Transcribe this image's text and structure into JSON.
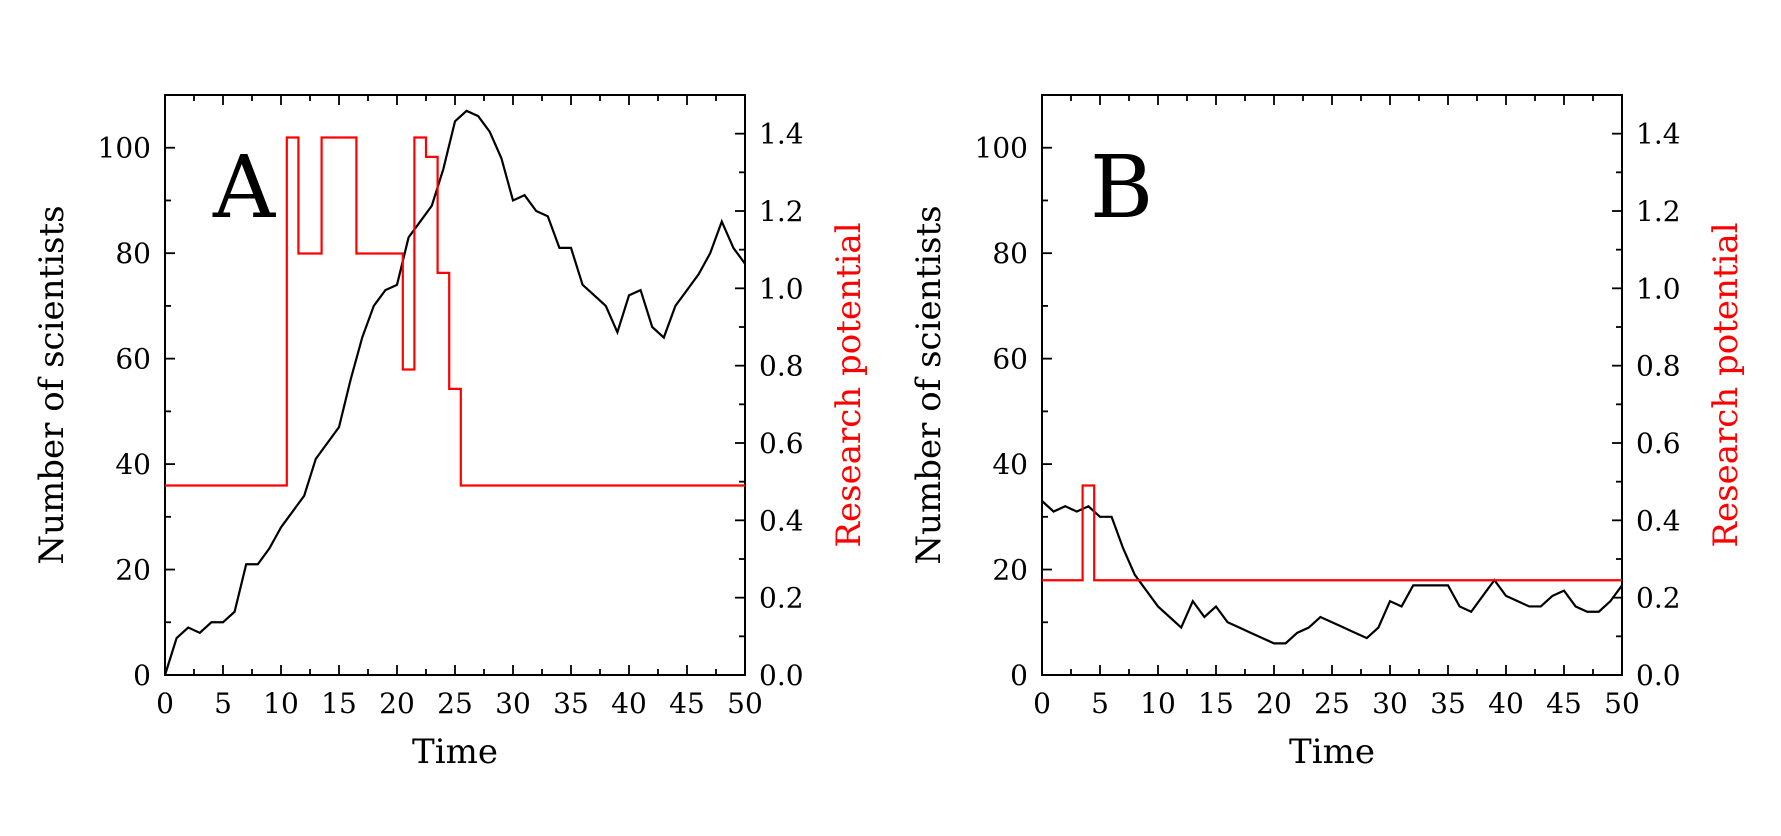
{
  "chart_data": [
    {
      "panel_label": "A",
      "type": "line",
      "xlabel": "Time",
      "ylabel": "Number of scientists",
      "y2label": "Research potential",
      "xlim": [
        0,
        50
      ],
      "ylim": [
        0,
        110
      ],
      "y2lim": [
        0,
        1.5
      ],
      "x_ticks": [
        0,
        5,
        10,
        15,
        20,
        25,
        30,
        35,
        40,
        45,
        50
      ],
      "y_ticks": [
        0,
        20,
        40,
        60,
        80,
        100
      ],
      "y2_ticks": [
        0.0,
        0.2,
        0.4,
        0.6,
        0.8,
        1.0,
        1.2,
        1.4
      ],
      "y2_tick_labels": [
        "0.0",
        "0.2",
        "0.4",
        "0.6",
        "0.8",
        "1.0",
        "1.2",
        "1.4"
      ],
      "grid": false,
      "series": [
        {
          "axis": "left",
          "style": "line",
          "color": "#000000",
          "x": [
            0,
            1,
            2,
            3,
            4,
            5,
            6,
            7,
            8,
            9,
            10,
            11,
            12,
            13,
            14,
            15,
            16,
            17,
            18,
            19,
            20,
            21,
            22,
            23,
            24,
            25,
            26,
            27,
            28,
            29,
            30,
            31,
            32,
            33,
            34,
            35,
            36,
            37,
            38,
            39,
            40,
            41,
            42,
            43,
            44,
            45,
            46,
            47,
            48,
            49,
            50
          ],
          "y": [
            0,
            7,
            9,
            8,
            10,
            10,
            12,
            21,
            21,
            24,
            28,
            31,
            34,
            41,
            44,
            47,
            56,
            64,
            70,
            73,
            74,
            83,
            86,
            89,
            96,
            105,
            107,
            106,
            103,
            98,
            90,
            91,
            88,
            87,
            81,
            81,
            74,
            72,
            70,
            65,
            72,
            73,
            66,
            64,
            70,
            73,
            76,
            80,
            86,
            81,
            78
          ]
        },
        {
          "axis": "right",
          "style": "step",
          "color": "#ff0000",
          "x": [
            0,
            10.5,
            11.5,
            13.5,
            16.5,
            20.5,
            21.5,
            22.5,
            23.5,
            24.5,
            25.5,
            50
          ],
          "y": [
            0.49,
            1.39,
            1.09,
            1.39,
            1.09,
            0.79,
            1.39,
            1.34,
            1.04,
            0.74,
            0.49,
            0.49
          ]
        }
      ]
    },
    {
      "panel_label": "B",
      "type": "line",
      "xlabel": "Time",
      "ylabel": "Number of scientists",
      "y2label": "Research potential",
      "xlim": [
        0,
        50
      ],
      "ylim": [
        0,
        110
      ],
      "y2lim": [
        0,
        1.5
      ],
      "x_ticks": [
        0,
        5,
        10,
        15,
        20,
        25,
        30,
        35,
        40,
        45,
        50
      ],
      "y_ticks": [
        0,
        20,
        40,
        60,
        80,
        100
      ],
      "y2_ticks": [
        0.0,
        0.2,
        0.4,
        0.6,
        0.8,
        1.0,
        1.2,
        1.4
      ],
      "y2_tick_labels": [
        "0.0",
        "0.2",
        "0.4",
        "0.6",
        "0.8",
        "1.0",
        "1.2",
        "1.4"
      ],
      "grid": false,
      "series": [
        {
          "axis": "left",
          "style": "line",
          "color": "#000000",
          "x": [
            0,
            1,
            2,
            3,
            4,
            5,
            6,
            7,
            8,
            9,
            10,
            11,
            12,
            13,
            14,
            15,
            16,
            17,
            18,
            19,
            20,
            21,
            22,
            23,
            24,
            25,
            26,
            27,
            28,
            29,
            30,
            31,
            32,
            33,
            34,
            35,
            36,
            37,
            38,
            39,
            40,
            41,
            42,
            43,
            44,
            45,
            46,
            47,
            48,
            49,
            50
          ],
          "y": [
            33,
            31,
            32,
            31,
            32,
            30,
            30,
            24,
            19,
            16,
            13,
            11,
            9,
            14,
            11,
            13,
            10,
            9,
            8,
            7,
            6,
            6,
            8,
            9,
            11,
            10,
            9,
            8,
            7,
            9,
            14,
            13,
            17,
            17,
            17,
            17,
            13,
            12,
            15,
            18,
            15,
            14,
            13,
            13,
            15,
            16,
            13,
            12,
            12,
            14,
            17
          ]
        },
        {
          "axis": "right",
          "style": "step",
          "color": "#ff0000",
          "x": [
            0,
            3.5,
            4.5,
            50
          ],
          "y": [
            0.245,
            0.49,
            0.245,
            0.245
          ]
        }
      ]
    }
  ]
}
